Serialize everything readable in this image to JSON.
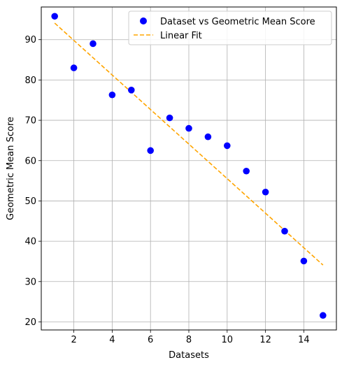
{
  "chart_data": {
    "type": "scatter",
    "title": "",
    "xlabel": "Datasets",
    "ylabel": "Geometric Mean Score",
    "xlim": [
      0.3,
      15.7
    ],
    "ylim": [
      18,
      98.1
    ],
    "xticks": [
      2,
      4,
      6,
      8,
      10,
      12,
      14
    ],
    "yticks": [
      20,
      30,
      40,
      50,
      60,
      70,
      80,
      90
    ],
    "grid": true,
    "legend_position": "upper-right",
    "series": [
      {
        "name": "Dataset vs Geometric Mean Score",
        "kind": "scatter",
        "color": "#0000ff",
        "x": [
          1,
          2,
          3,
          4,
          5,
          6,
          7,
          8,
          9,
          10,
          11,
          12,
          13,
          14,
          15
        ],
        "y": [
          95.8,
          83.0,
          89.0,
          76.3,
          77.5,
          62.5,
          70.6,
          68.0,
          65.9,
          63.7,
          57.4,
          52.2,
          42.5,
          35.1,
          21.6
        ]
      },
      {
        "name": "Linear Fit",
        "kind": "line",
        "color": "#ffa500",
        "dash": "dashed",
        "x": [
          1,
          15
        ],
        "y": [
          94.1,
          34.1
        ]
      }
    ]
  }
}
